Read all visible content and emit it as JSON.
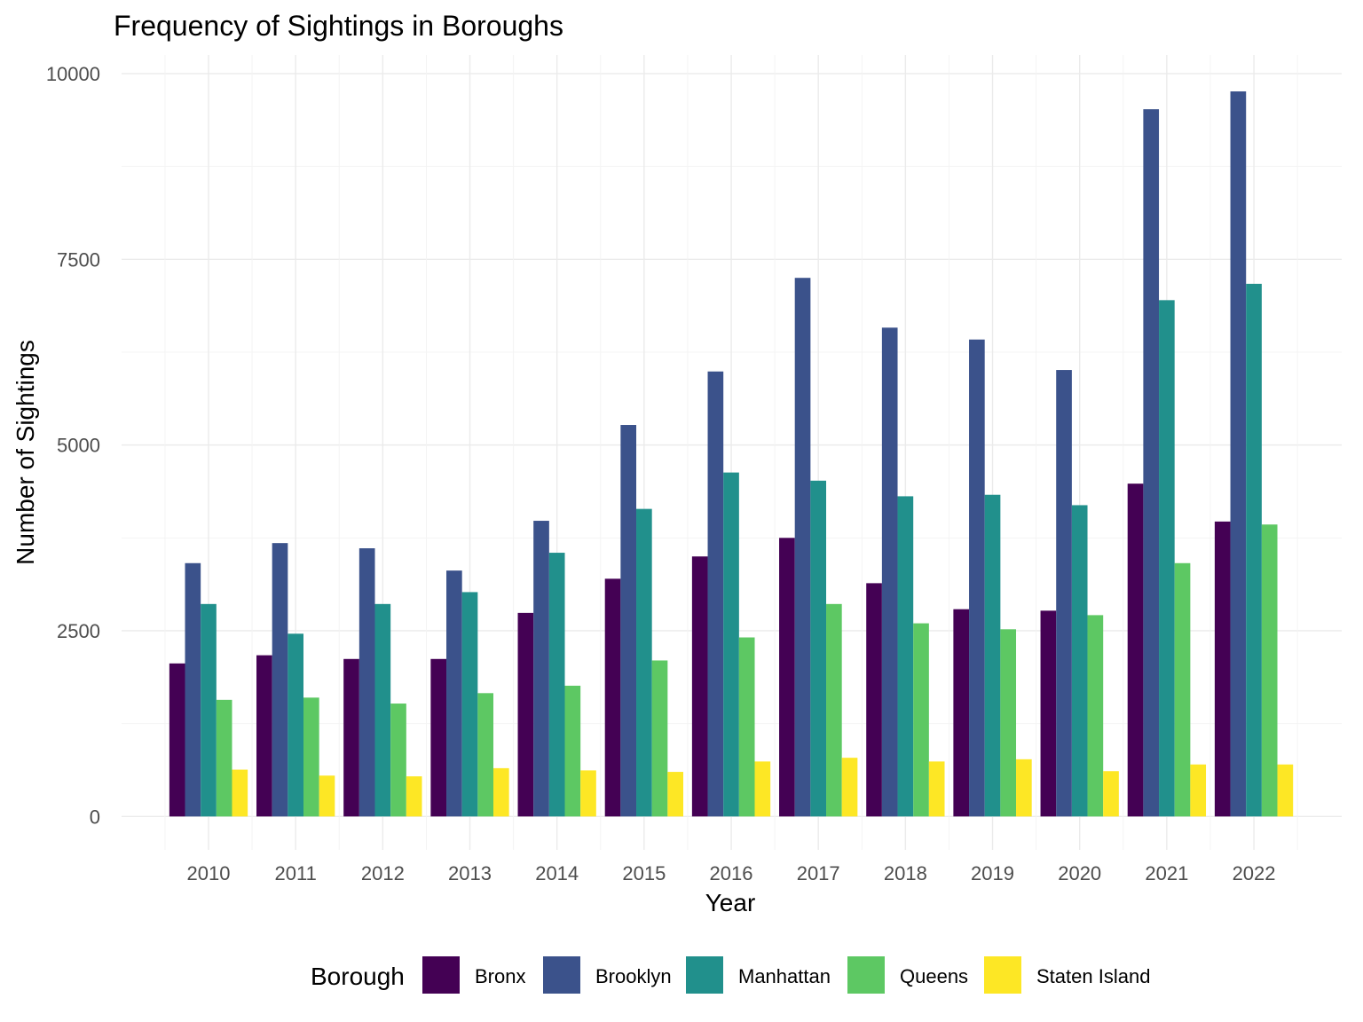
{
  "chart_data": {
    "type": "bar",
    "title": "Frequency of Sightings in Boroughs",
    "xlabel": "Year",
    "ylabel": "Number of Sightings",
    "categories": [
      "2010",
      "2011",
      "2012",
      "2013",
      "2014",
      "2015",
      "2016",
      "2017",
      "2018",
      "2019",
      "2020",
      "2021",
      "2022"
    ],
    "y_ticks": [
      "0",
      "2500",
      "5000",
      "7500",
      "10000"
    ],
    "ylim": [
      -450,
      10250
    ],
    "grid": true,
    "legend": {
      "title": "Borough",
      "position": "bottom"
    },
    "series": [
      {
        "name": "Bronx",
        "color": "#440154",
        "values": [
          2060,
          2170,
          2120,
          2120,
          2740,
          3200,
          3500,
          3750,
          3140,
          2790,
          2770,
          4480,
          3970
        ]
      },
      {
        "name": "Brooklyn",
        "color": "#3B528B",
        "values": [
          3410,
          3680,
          3610,
          3310,
          3980,
          5270,
          5990,
          7250,
          6580,
          6420,
          6010,
          9520,
          9760
        ]
      },
      {
        "name": "Manhattan",
        "color": "#21908C",
        "values": [
          2860,
          2460,
          2860,
          3020,
          3550,
          4140,
          4630,
          4520,
          4310,
          4330,
          4190,
          6950,
          7170
        ]
      },
      {
        "name": "Queens",
        "color": "#5DC863",
        "values": [
          1570,
          1600,
          1520,
          1660,
          1760,
          2100,
          2410,
          2860,
          2600,
          2520,
          2710,
          3410,
          3930
        ]
      },
      {
        "name": "Staten Island",
        "color": "#FDE725",
        "values": [
          630,
          550,
          540,
          650,
          620,
          600,
          740,
          790,
          740,
          770,
          610,
          700,
          700
        ]
      }
    ]
  }
}
